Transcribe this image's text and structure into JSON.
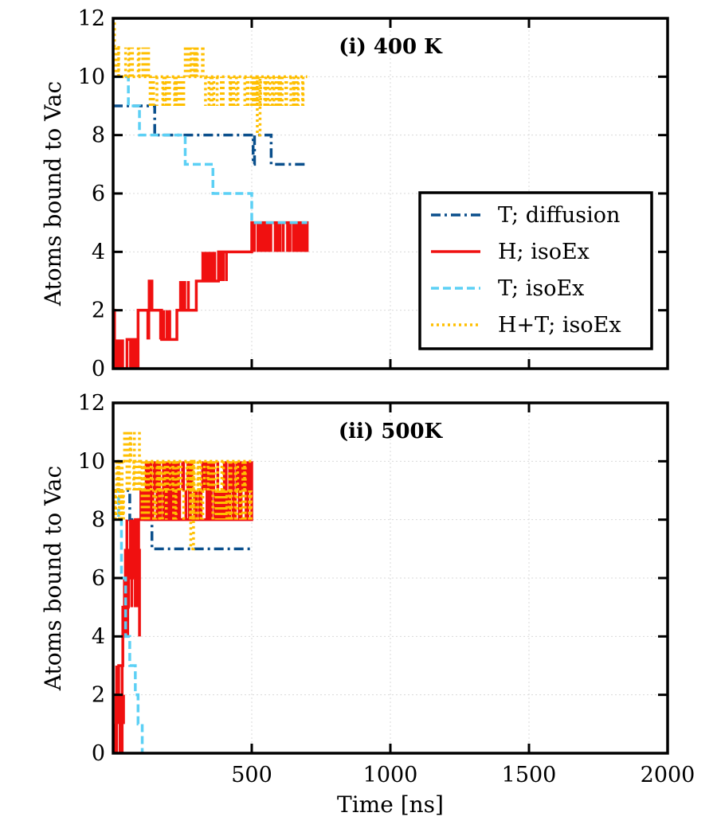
{
  "chart_data": {
    "type": "line",
    "xlabel": "Time [ns]",
    "ylabel": "Atoms bound to Vac",
    "xlim": [
      0,
      2000
    ],
    "ylim": [
      0,
      12
    ],
    "x_ticks": [
      500,
      1000,
      1500,
      2000
    ],
    "x_tick_labels": [
      "500",
      "1000",
      "1500",
      "2000"
    ],
    "y_ticks": [
      0,
      2,
      4,
      6,
      8,
      10,
      12
    ],
    "y_tick_labels": [
      "0",
      "2",
      "4",
      "6",
      "8",
      "10",
      "12"
    ],
    "grid": true,
    "legend_position": "lower-right",
    "legend": [
      {
        "label": "T; diffusion",
        "color": "#0a4f8c",
        "dash": "dashdot"
      },
      {
        "label": "H; isoEx",
        "color": "#f01010",
        "dash": "solid"
      },
      {
        "label": "T; isoEx",
        "color": "#5cd0f5",
        "dash": "dashed"
      },
      {
        "label": "H+T; isoEx",
        "color": "#ffbf00",
        "dash": "dotted"
      }
    ],
    "panels": [
      {
        "title": "(i) 400 K",
        "series": [
          {
            "name": "T; diffusion",
            "color": "#0a4f8c",
            "dash": "dashdot",
            "width": 3.5,
            "steps": [
              [
                0,
                9
              ],
              [
                150,
                9
              ],
              [
                150,
                8
              ],
              [
                505,
                8
              ],
              [
                505,
                7
              ],
              [
                510,
                7
              ],
              [
                510,
                8
              ],
              [
                570,
                8
              ],
              [
                570,
                7
              ],
              [
                700,
                7
              ]
            ]
          },
          {
            "name": "H; isoEx",
            "color": "#f01010",
            "dash": "solid",
            "width": 3.5,
            "jitter": [
              [
                0,
                0,
                50,
                0,
                1
              ],
              [
                50,
                80,
                0,
                0,
                1
              ],
              [
                125,
                130,
                0,
                1,
                2
              ],
              [
                170,
                210,
                0,
                1,
                2
              ],
              [
                240,
                280,
                0,
                2,
                3
              ],
              [
                320,
                420,
                0,
                3,
                4
              ],
              [
                500,
                700,
                0,
                4,
                5
              ]
            ],
            "steps": [
              [
                0,
                2
              ],
              [
                5,
                2
              ],
              [
                5,
                0
              ],
              [
                50,
                0
              ],
              [
                50,
                1
              ],
              [
                80,
                1
              ],
              [
                80,
                0
              ],
              [
                90,
                0
              ],
              [
                90,
                2
              ],
              [
                130,
                2
              ],
              [
                130,
                3
              ],
              [
                140,
                3
              ],
              [
                140,
                2
              ],
              [
                175,
                2
              ],
              [
                175,
                1
              ],
              [
                230,
                1
              ],
              [
                230,
                2
              ],
              [
                300,
                2
              ],
              [
                300,
                3
              ],
              [
                380,
                3
              ],
              [
                380,
                4
              ],
              [
                500,
                4
              ],
              [
                500,
                5
              ],
              [
                700,
                5
              ],
              [
                700,
                4
              ]
            ]
          },
          {
            "name": "T; isoEx",
            "color": "#5cd0f5",
            "dash": "dashed",
            "width": 3.5,
            "steps": [
              [
                0,
                10
              ],
              [
                55,
                10
              ],
              [
                55,
                9
              ],
              [
                95,
                9
              ],
              [
                95,
                8
              ],
              [
                260,
                8
              ],
              [
                260,
                7
              ],
              [
                360,
                7
              ],
              [
                360,
                6
              ],
              [
                500,
                6
              ],
              [
                500,
                5
              ],
              [
                700,
                5
              ]
            ]
          },
          {
            "name": "H+T; isoEx",
            "color": "#ffbf00",
            "dash": "dotted",
            "width": 3.5,
            "jitter": [
              [
                0,
                0,
                60,
                10,
                11
              ],
              [
                60,
                130,
                0,
                10,
                11
              ],
              [
                130,
                260,
                0,
                9,
                10
              ],
              [
                260,
                330,
                0,
                10,
                11
              ],
              [
                330,
                700,
                0,
                9,
                10
              ]
            ],
            "steps": [
              [
                0,
                12
              ],
              [
                5,
                12
              ],
              [
                5,
                11
              ],
              [
                20,
                11
              ],
              [
                20,
                10
              ],
              [
                520,
                10
              ],
              [
                520,
                8
              ],
              [
                530,
                8
              ],
              [
                530,
                10
              ],
              [
                700,
                10
              ]
            ]
          }
        ]
      },
      {
        "title": "(ii) 500K",
        "series": [
          {
            "name": "T; diffusion",
            "color": "#0a4f8c",
            "dash": "dashdot",
            "width": 3.5,
            "steps": [
              [
                0,
                9
              ],
              [
                60,
                9
              ],
              [
                60,
                8
              ],
              [
                140,
                8
              ],
              [
                140,
                7
              ],
              [
                500,
                7
              ]
            ]
          },
          {
            "name": "H; isoEx",
            "color": "#f01010",
            "dash": "solid",
            "width": 3.5,
            "jitter": [
              [
                0,
                0,
                40,
                0,
                3
              ],
              [
                40,
                100,
                0,
                4,
                8
              ],
              [
                100,
                500,
                0,
                8,
                10
              ]
            ],
            "steps": [
              [
                0,
                0
              ],
              [
                10,
                0
              ],
              [
                10,
                2
              ],
              [
                20,
                2
              ],
              [
                20,
                3
              ],
              [
                35,
                3
              ],
              [
                35,
                5
              ],
              [
                55,
                5
              ],
              [
                55,
                6
              ],
              [
                70,
                6
              ],
              [
                70,
                7
              ],
              [
                80,
                7
              ],
              [
                80,
                8
              ],
              [
                500,
                8
              ],
              [
                500,
                10
              ]
            ]
          },
          {
            "name": "T; isoEx",
            "color": "#5cd0f5",
            "dash": "dashed",
            "width": 3.5,
            "steps": [
              [
                0,
                9
              ],
              [
                20,
                9
              ],
              [
                20,
                8
              ],
              [
                30,
                8
              ],
              [
                30,
                6
              ],
              [
                45,
                6
              ],
              [
                45,
                4
              ],
              [
                60,
                4
              ],
              [
                60,
                3
              ],
              [
                80,
                3
              ],
              [
                80,
                2
              ],
              [
                90,
                2
              ],
              [
                90,
                1
              ],
              [
                105,
                1
              ],
              [
                105,
                0
              ]
            ]
          },
          {
            "name": "H+T; isoEx",
            "color": "#ffbf00",
            "dash": "dotted",
            "width": 3.5,
            "jitter": [
              [
                0,
                0,
                40,
                8,
                10
              ],
              [
                40,
                100,
                0,
                9,
                11
              ],
              [
                100,
                500,
                0,
                8,
                10
              ]
            ],
            "steps": [
              [
                0,
                9
              ],
              [
                20,
                9
              ],
              [
                20,
                10
              ],
              [
                280,
                10
              ],
              [
                280,
                7
              ],
              [
                290,
                7
              ],
              [
                290,
                10
              ],
              [
                500,
                10
              ]
            ]
          }
        ]
      }
    ]
  }
}
